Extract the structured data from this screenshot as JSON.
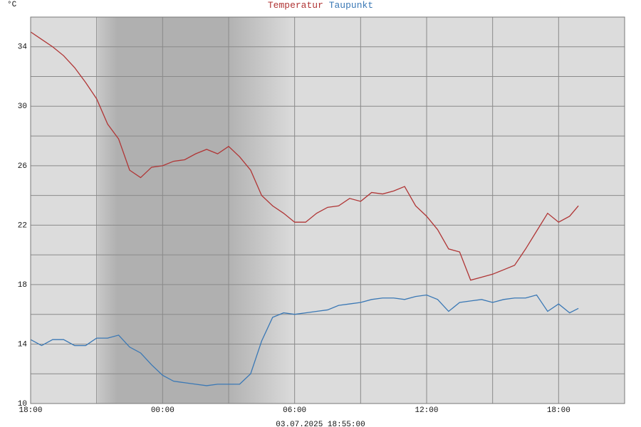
{
  "chart_data": {
    "type": "line",
    "unit_label": "°C",
    "timestamp": "03.07.2025 18:55:00",
    "x": [
      0,
      0.5,
      1,
      1.5,
      2,
      2.5,
      3,
      3.5,
      4,
      4.5,
      5,
      5.5,
      6,
      6.5,
      7,
      7.5,
      8,
      8.5,
      9,
      9.5,
      10,
      10.5,
      11,
      11.5,
      12,
      12.5,
      13,
      13.5,
      14,
      14.5,
      15,
      15.5,
      16,
      16.5,
      17,
      17.5,
      18,
      18.5,
      19,
      19.5,
      20,
      20.5,
      21,
      21.5,
      22,
      22.5,
      23,
      23.5,
      24,
      24.5,
      24.9
    ],
    "series": [
      {
        "name": "Temperatur",
        "color": "#b03535",
        "values": [
          35.0,
          34.5,
          34.0,
          33.4,
          32.6,
          31.6,
          30.5,
          28.8,
          27.8,
          25.7,
          25.2,
          25.9,
          26.0,
          26.3,
          26.4,
          26.8,
          27.1,
          26.8,
          27.3,
          26.6,
          25.7,
          24.0,
          23.3,
          22.8,
          22.2,
          22.2,
          22.8,
          23.2,
          23.3,
          23.8,
          23.6,
          24.2,
          24.1,
          24.3,
          24.6,
          23.3,
          22.6,
          21.7,
          20.4,
          20.2,
          18.3,
          18.5,
          18.7,
          19.0,
          19.3,
          20.4,
          21.6,
          22.8,
          22.2,
          22.6,
          23.3
        ]
      },
      {
        "name": "Taupunkt",
        "color": "#3a78b5",
        "values": [
          14.3,
          13.9,
          14.3,
          14.3,
          13.9,
          13.9,
          14.4,
          14.4,
          14.6,
          13.8,
          13.4,
          12.6,
          11.9,
          11.5,
          11.4,
          11.3,
          11.2,
          11.3,
          11.3,
          11.3,
          12.0,
          14.2,
          15.8,
          16.1,
          16.0,
          16.1,
          16.2,
          16.3,
          16.6,
          16.7,
          16.8,
          17.0,
          17.1,
          17.1,
          17.0,
          17.2,
          17.3,
          17.0,
          16.2,
          16.8,
          16.9,
          17.0,
          16.8,
          17.0,
          17.1,
          17.1,
          17.3,
          16.2,
          16.7,
          16.1,
          16.4
        ]
      }
    ],
    "xlim": [
      0,
      27
    ],
    "xticks": [
      {
        "value": 0,
        "label": "18:00"
      },
      {
        "value": 6,
        "label": "00:00"
      },
      {
        "value": 12,
        "label": "06:00"
      },
      {
        "value": 18,
        "label": "12:00"
      },
      {
        "value": 24,
        "label": "18:00"
      }
    ],
    "x_minor_grid": [
      3,
      9,
      15,
      21,
      27
    ],
    "ylim": [
      10,
      36
    ],
    "yticks": [
      10,
      14,
      18,
      22,
      26,
      30,
      34
    ],
    "y_minor_grid": [
      12,
      16,
      20,
      24,
      28,
      32,
      36
    ],
    "grid": true
  }
}
